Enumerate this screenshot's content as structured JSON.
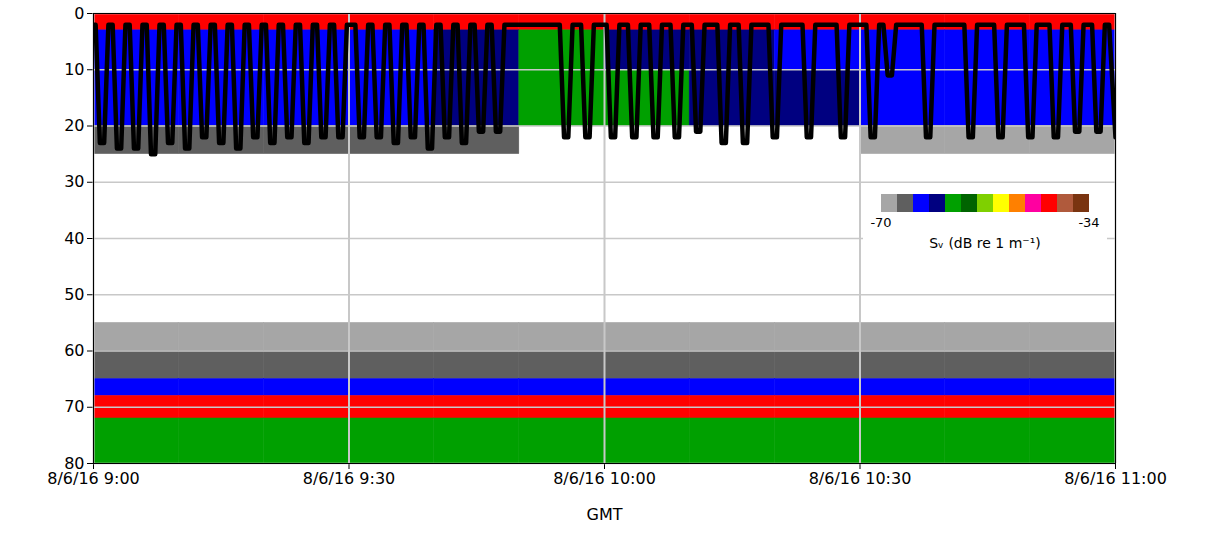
{
  "chart_data": {
    "type": "heatmap",
    "x_label": "GMT",
    "xlim": [
      "2016-08-06T09:00:00",
      "2016-08-06T11:00:00"
    ],
    "xticks": [
      {
        "value": "2016-08-06T09:00:00",
        "label": "8/6/16 9:00"
      },
      {
        "value": "2016-08-06T09:30:00",
        "label": "8/6/16 9:30"
      },
      {
        "value": "2016-08-06T10:00:00",
        "label": "8/6/16 10:00"
      },
      {
        "value": "2016-08-06T10:30:00",
        "label": "8/6/16 10:30"
      },
      {
        "value": "2016-08-06T11:00:00",
        "label": "8/6/16 11:00"
      }
    ],
    "ylim": [
      0,
      80
    ],
    "yticks": [
      0,
      10,
      20,
      30,
      40,
      50,
      60,
      70,
      80
    ],
    "grid": true,
    "legend": "right",
    "cells": {
      "x_edges": [
        "2016-08-06T09:00:00",
        "2016-08-06T09:10:00",
        "2016-08-06T09:20:00",
        "2016-08-06T09:30:00",
        "2016-08-06T09:40:00",
        "2016-08-06T09:50:00",
        "2016-08-06T10:00:00",
        "2016-08-06T10:10:00",
        "2016-08-06T10:20:00",
        "2016-08-06T10:30:00",
        "2016-08-06T10:40:00",
        "2016-08-06T10:50:00",
        "2016-08-06T11:00:00"
      ],
      "y_edges": [
        0,
        3,
        10,
        20,
        25,
        30,
        40,
        50,
        55,
        60,
        65,
        68,
        72,
        80
      ],
      "values": [
        [
          -41,
          -41,
          -41,
          -41,
          -41,
          -41,
          -41,
          -41,
          -41,
          -41,
          -41,
          -41
        ],
        [
          -63,
          -63,
          -63,
          -63,
          -61,
          -58,
          -59,
          -61,
          -62,
          -63,
          -63,
          -63
        ],
        [
          -63,
          -63,
          -63,
          -63,
          -60,
          -57,
          -58,
          -60,
          -61,
          -62,
          -63,
          -63
        ],
        [
          -66,
          -66,
          -66,
          -66,
          -67,
          null,
          null,
          null,
          null,
          -68,
          -68,
          -68
        ],
        [
          null,
          null,
          null,
          null,
          null,
          null,
          null,
          null,
          null,
          null,
          null,
          null
        ],
        [
          null,
          null,
          null,
          null,
          null,
          null,
          null,
          null,
          null,
          null,
          null,
          null
        ],
        [
          null,
          null,
          null,
          null,
          null,
          null,
          null,
          null,
          null,
          null,
          null,
          null
        ],
        [
          null,
          null,
          null,
          null,
          null,
          null,
          null,
          null,
          null,
          null,
          null,
          null
        ],
        [
          -68,
          -68,
          -68,
          -68,
          -68,
          -68,
          -68,
          -68,
          -68,
          -68,
          -68,
          -68
        ],
        [
          -65,
          -65,
          -65,
          -65,
          -65,
          -65,
          -65,
          -65,
          -65,
          -65,
          -65,
          -65
        ],
        [
          -62,
          -62,
          -62,
          -62,
          -62,
          -62,
          -62,
          -62,
          -62,
          -62,
          -62,
          -62
        ],
        [
          -41,
          -41,
          -41,
          -41,
          -41,
          -41,
          -41,
          -41,
          -41,
          -41,
          -41,
          -41
        ],
        [
          -58,
          -58,
          -58,
          -58,
          -58,
          -58,
          -58,
          -58,
          -58,
          -58,
          -58,
          -58
        ]
      ]
    },
    "colorbar": {
      "range": [
        -70,
        -34
      ],
      "ticks": [
        -70,
        -34
      ],
      "colors": [
        "#a6a6a6",
        "#5f5f5f",
        "#0000ff",
        "#000080",
        "#00a000",
        "#006400",
        "#7fd000",
        "#ffff00",
        "#ff8000",
        "#ff00a0",
        "#ff0000",
        "#b05a3c",
        "#7a3410"
      ],
      "label": "Sᵥ (dB re 1 m⁻¹)"
    },
    "track": {
      "type": "line",
      "color": "#000000",
      "x": [
        "2016-08-06T09:00:00",
        "2016-08-06T09:00:15",
        "2016-08-06T09:00:45",
        "2016-08-06T09:01:15",
        "2016-08-06T09:01:45",
        "2016-08-06T09:02:15",
        "2016-08-06T09:02:45",
        "2016-08-06T09:03:15",
        "2016-08-06T09:03:45",
        "2016-08-06T09:04:15",
        "2016-08-06T09:04:45",
        "2016-08-06T09:05:15",
        "2016-08-06T09:05:45",
        "2016-08-06T09:06:15",
        "2016-08-06T09:06:45",
        "2016-08-06T09:07:15",
        "2016-08-06T09:07:45",
        "2016-08-06T09:08:15",
        "2016-08-06T09:08:45",
        "2016-08-06T09:09:15",
        "2016-08-06T09:09:45",
        "2016-08-06T09:10:15",
        "2016-08-06T09:10:45",
        "2016-08-06T09:11:15",
        "2016-08-06T09:11:45",
        "2016-08-06T09:12:15",
        "2016-08-06T09:12:45",
        "2016-08-06T09:13:15",
        "2016-08-06T09:13:45",
        "2016-08-06T09:14:15",
        "2016-08-06T09:14:45",
        "2016-08-06T09:15:15",
        "2016-08-06T09:15:45",
        "2016-08-06T09:16:15",
        "2016-08-06T09:16:45",
        "2016-08-06T09:17:15",
        "2016-08-06T09:17:45",
        "2016-08-06T09:18:15",
        "2016-08-06T09:18:45",
        "2016-08-06T09:19:15",
        "2016-08-06T09:19:45",
        "2016-08-06T09:20:15",
        "2016-08-06T09:20:45",
        "2016-08-06T09:21:15",
        "2016-08-06T09:21:45",
        "2016-08-06T09:22:15",
        "2016-08-06T09:22:45",
        "2016-08-06T09:23:15",
        "2016-08-06T09:23:45",
        "2016-08-06T09:24:15",
        "2016-08-06T09:24:45",
        "2016-08-06T09:25:15",
        "2016-08-06T09:25:45",
        "2016-08-06T09:26:15",
        "2016-08-06T09:26:45",
        "2016-08-06T09:27:15",
        "2016-08-06T09:27:45",
        "2016-08-06T09:28:15",
        "2016-08-06T09:28:45",
        "2016-08-06T09:29:15",
        "2016-08-06T09:29:45",
        "2016-08-06T09:30:45",
        "2016-08-06T09:31:15",
        "2016-08-06T09:31:45",
        "2016-08-06T09:32:15",
        "2016-08-06T09:32:45",
        "2016-08-06T09:33:15",
        "2016-08-06T09:33:45",
        "2016-08-06T09:34:15",
        "2016-08-06T09:34:45",
        "2016-08-06T09:35:15",
        "2016-08-06T09:35:45",
        "2016-08-06T09:36:15",
        "2016-08-06T09:36:45",
        "2016-08-06T09:37:15",
        "2016-08-06T09:37:45",
        "2016-08-06T09:38:15",
        "2016-08-06T09:38:45",
        "2016-08-06T09:39:15",
        "2016-08-06T09:39:45",
        "2016-08-06T09:40:15",
        "2016-08-06T09:40:45",
        "2016-08-06T09:41:15",
        "2016-08-06T09:41:45",
        "2016-08-06T09:42:15",
        "2016-08-06T09:42:45",
        "2016-08-06T09:43:15",
        "2016-08-06T09:43:45",
        "2016-08-06T09:44:15",
        "2016-08-06T09:44:45",
        "2016-08-06T09:45:15",
        "2016-08-06T09:45:45",
        "2016-08-06T09:46:15",
        "2016-08-06T09:46:45",
        "2016-08-06T09:47:15",
        "2016-08-06T09:47:45",
        "2016-08-06T09:48:15",
        "2016-08-06T09:54:45",
        "2016-08-06T09:55:15",
        "2016-08-06T09:55:45",
        "2016-08-06T09:56:15",
        "2016-08-06T09:57:15",
        "2016-08-06T09:57:45",
        "2016-08-06T09:58:15",
        "2016-08-06T09:58:45",
        "2016-08-06T10:00:15",
        "2016-08-06T10:00:45",
        "2016-08-06T10:01:15",
        "2016-08-06T10:01:45",
        "2016-08-06T10:02:45",
        "2016-08-06T10:03:15",
        "2016-08-06T10:03:45",
        "2016-08-06T10:04:15",
        "2016-08-06T10:05:15",
        "2016-08-06T10:05:45",
        "2016-08-06T10:06:15",
        "2016-08-06T10:06:45",
        "2016-08-06T10:07:45",
        "2016-08-06T10:08:15",
        "2016-08-06T10:08:45",
        "2016-08-06T10:09:15",
        "2016-08-06T10:10:15",
        "2016-08-06T10:10:45",
        "2016-08-06T10:11:15",
        "2016-08-06T10:11:45",
        "2016-08-06T10:13:15",
        "2016-08-06T10:13:45",
        "2016-08-06T10:14:15",
        "2016-08-06T10:14:45",
        "2016-08-06T10:15:45",
        "2016-08-06T10:16:15",
        "2016-08-06T10:16:45",
        "2016-08-06T10:17:15",
        "2016-08-06T10:19:15",
        "2016-08-06T10:19:45",
        "2016-08-06T10:20:15",
        "2016-08-06T10:20:45",
        "2016-08-06T10:23:15",
        "2016-08-06T10:23:45",
        "2016-08-06T10:24:15",
        "2016-08-06T10:24:45",
        "2016-08-06T10:27:15",
        "2016-08-06T10:27:45",
        "2016-08-06T10:28:15",
        "2016-08-06T10:28:45",
        "2016-08-06T10:30:45",
        "2016-08-06T10:31:15",
        "2016-08-06T10:31:45",
        "2016-08-06T10:32:15",
        "2016-08-06T10:32:45",
        "2016-08-06T10:33:15",
        "2016-08-06T10:33:45",
        "2016-08-06T10:34:15",
        "2016-08-06T10:37:15",
        "2016-08-06T10:37:45",
        "2016-08-06T10:38:15",
        "2016-08-06T10:38:45",
        "2016-08-06T10:42:15",
        "2016-08-06T10:42:45",
        "2016-08-06T10:43:15",
        "2016-08-06T10:43:45",
        "2016-08-06T10:45:45",
        "2016-08-06T10:46:15",
        "2016-08-06T10:46:45",
        "2016-08-06T10:47:15",
        "2016-08-06T10:49:15",
        "2016-08-06T10:49:45",
        "2016-08-06T10:50:15",
        "2016-08-06T10:50:45",
        "2016-08-06T10:52:15",
        "2016-08-06T10:52:45",
        "2016-08-06T10:53:15",
        "2016-08-06T10:53:45",
        "2016-08-06T10:54:45",
        "2016-08-06T10:55:15",
        "2016-08-06T10:55:45",
        "2016-08-06T10:56:15",
        "2016-08-06T10:57:15",
        "2016-08-06T10:57:45",
        "2016-08-06T10:58:15",
        "2016-08-06T10:58:45",
        "2016-08-06T10:59:15",
        "2016-08-06T11:00:00"
      ],
      "y": [
        2,
        2,
        23,
        23,
        2,
        2,
        24,
        24,
        2,
        2,
        24,
        24,
        2,
        2,
        25,
        25,
        2,
        2,
        23,
        23,
        2,
        2,
        24,
        24,
        2,
        2,
        22,
        22,
        2,
        2,
        23,
        23,
        2,
        2,
        24,
        24,
        2,
        2,
        22,
        22,
        2,
        2,
        23,
        23,
        2,
        2,
        22,
        22,
        2,
        2,
        23,
        23,
        2,
        2,
        22,
        22,
        2,
        2,
        22,
        22,
        2,
        2,
        22,
        22,
        2,
        2,
        22,
        22,
        2,
        2,
        23,
        23,
        2,
        2,
        22,
        22,
        2,
        2,
        24,
        24,
        2,
        2,
        22,
        22,
        2,
        2,
        23,
        23,
        2,
        2,
        21,
        21,
        2,
        2,
        21,
        21,
        2,
        2,
        22,
        22,
        2,
        2,
        22,
        22,
        2,
        2,
        22,
        22,
        2,
        2,
        22,
        22,
        2,
        2,
        22,
        22,
        2,
        2,
        22,
        22,
        2,
        2,
        21,
        21,
        2,
        2,
        23,
        23,
        2,
        2,
        23,
        23,
        2,
        2,
        22,
        22,
        2,
        2,
        22,
        22,
        2,
        2,
        22,
        22,
        2,
        2,
        22,
        22,
        2,
        2,
        11,
        11,
        2,
        2,
        22,
        22,
        2,
        2,
        22,
        22,
        2,
        2,
        22,
        22,
        2,
        2,
        22,
        22,
        2,
        2,
        22,
        22,
        2,
        2,
        21,
        21,
        2,
        2,
        21,
        21,
        2,
        2,
        22
      ]
    }
  }
}
